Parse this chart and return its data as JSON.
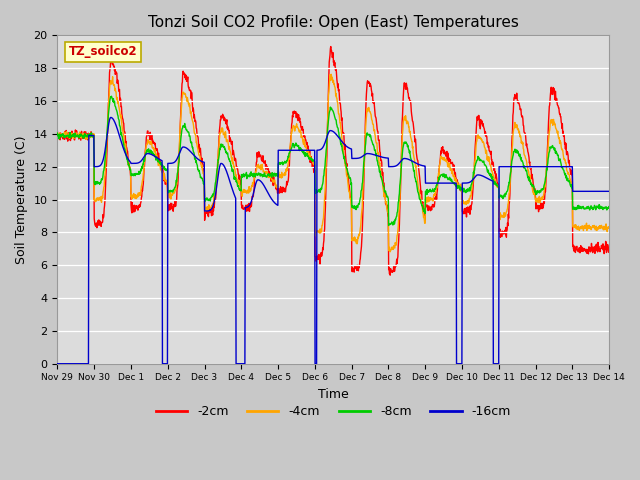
{
  "title": "Tonzi Soil CO2 Profile: Open (East) Temperatures",
  "xlabel": "Time",
  "ylabel": "Soil Temperature (C)",
  "ylim": [
    0,
    20
  ],
  "label_text": "TZ_soilco2",
  "colors": {
    "-2cm": "#ff0000",
    "-4cm": "#ffa500",
    "-8cm": "#00cc00",
    "-16cm": "#0000cc"
  },
  "legend_labels": [
    "-2cm",
    "-4cm",
    "-8cm",
    "-16cm"
  ],
  "x_tick_labels": [
    "Nov 29",
    "Nov 30",
    "Dec 1",
    "Dec 2",
    "Dec 3",
    "Dec 4",
    "Dec 5",
    "Dec 6",
    "Dec 7",
    "Dec 8",
    "Dec 9",
    "Dec 10",
    "Dec 11",
    "Dec 12",
    "Dec 13",
    "Dec 14"
  ],
  "background_color": "#dcdcdc",
  "plot_bg_color": "#dcdcdc",
  "fig_bg_color": "#c8c8c8"
}
